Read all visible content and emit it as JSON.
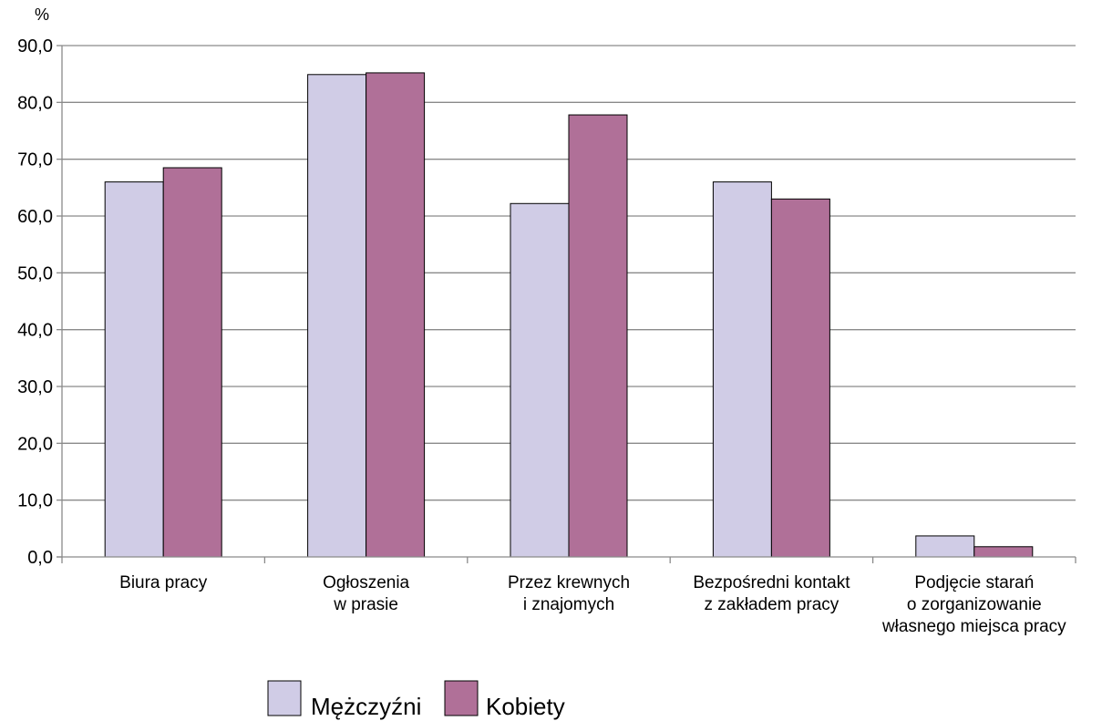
{
  "chart_data": {
    "type": "bar",
    "ylabel": "%",
    "ylim": [
      0,
      90
    ],
    "y_ticks": [
      "0,0",
      "10,0",
      "20,0",
      "30,0",
      "40,0",
      "50,0",
      "60,0",
      "70,0",
      "80,0",
      "90,0"
    ],
    "grid": true,
    "legend_position": "bottom-center",
    "categories": [
      [
        "Biura pracy"
      ],
      [
        "Ogłoszenia",
        "w prasie"
      ],
      [
        "Przez krewnych",
        "i znajomych"
      ],
      [
        "Bezpośredni kontakt",
        "z zakładem pracy"
      ],
      [
        "Podjęcie starań",
        "o zorganizowanie",
        "własnego miejsca pracy"
      ]
    ],
    "series": [
      {
        "name": "Mężczyźni",
        "color": "#d0cce6",
        "values": [
          66.0,
          84.9,
          62.2,
          66.0,
          3.7
        ]
      },
      {
        "name": "Kobiety",
        "color": "#b07098",
        "values": [
          68.5,
          85.2,
          77.8,
          63.0,
          1.8
        ]
      }
    ]
  }
}
